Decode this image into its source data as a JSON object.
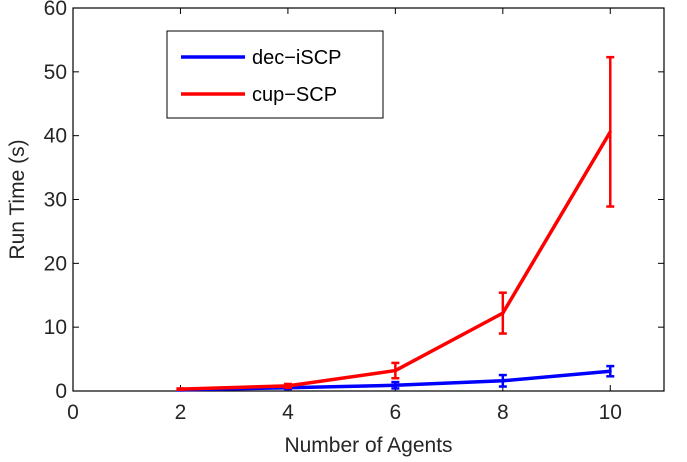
{
  "chart_data": {
    "type": "line",
    "x": [
      2,
      4,
      6,
      8,
      10
    ],
    "series": [
      {
        "name": "dec−iSCP",
        "color": "#0000ff",
        "values": [
          0.2,
          0.5,
          0.9,
          1.6,
          3.1
        ],
        "error": [
          0.1,
          0.2,
          0.5,
          0.9,
          0.8
        ]
      },
      {
        "name": "cup−SCP",
        "color": "#ff0000",
        "values": [
          0.3,
          0.8,
          3.2,
          12.2,
          40.6
        ],
        "error": [
          0.1,
          0.3,
          1.2,
          3.2,
          11.7
        ]
      }
    ],
    "xlabel": "Number of Agents",
    "ylabel": "Run Time (s)",
    "xlim": [
      0,
      11
    ],
    "ylim": [
      0,
      60
    ],
    "xticks": [
      0,
      2,
      4,
      6,
      8,
      10
    ],
    "yticks": [
      0,
      10,
      20,
      30,
      40,
      50,
      60
    ],
    "grid": false,
    "legend_position": "top-left"
  }
}
